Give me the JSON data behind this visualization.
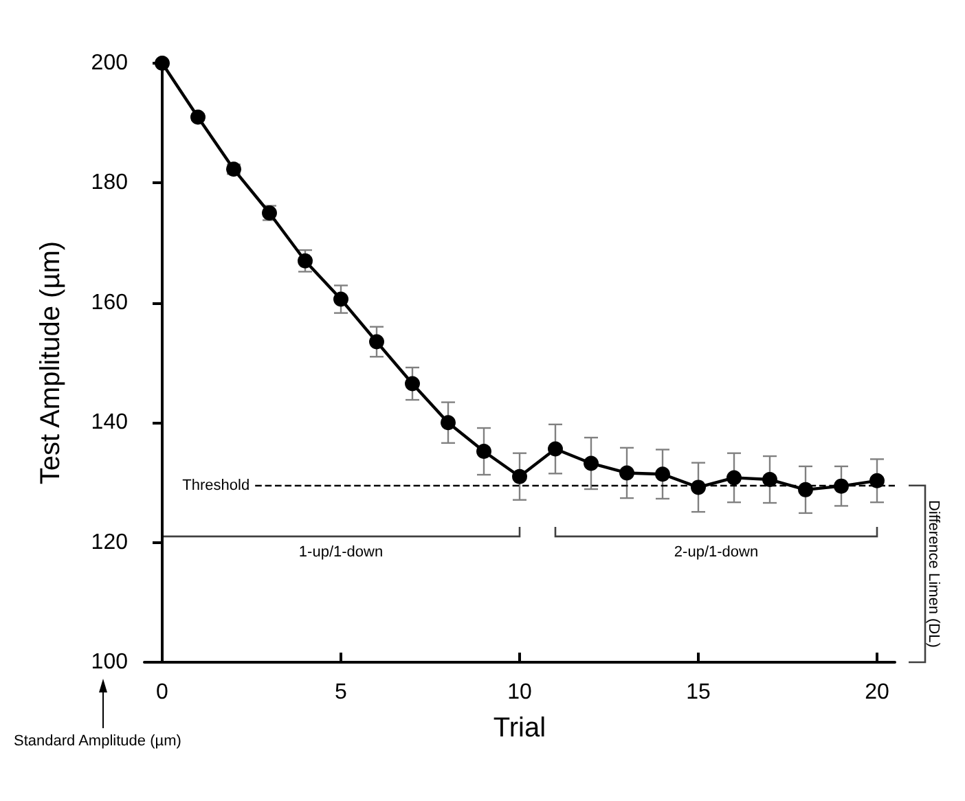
{
  "chart_data": {
    "type": "line",
    "xlabel": "Trial",
    "ylabel": "Test Amplitude (µm)",
    "x": [
      0,
      1,
      2,
      3,
      4,
      5,
      6,
      7,
      8,
      9,
      10,
      11,
      12,
      13,
      14,
      15,
      16,
      17,
      18,
      19,
      20
    ],
    "series": [
      {
        "color": "#000000",
        "values": [
          200,
          191,
          182.3,
          175,
          167,
          160.6,
          153.5,
          146.5,
          140,
          135.2,
          131,
          135.6,
          133.2,
          131.6,
          131.4,
          129.2,
          130.8,
          130.5,
          128.8,
          129.4,
          130.3
        ],
        "errors": [
          null,
          0.5,
          0.8,
          1.2,
          1.8,
          2.3,
          2.5,
          2.7,
          3.4,
          3.9,
          3.9,
          4.1,
          4.3,
          4.2,
          4.1,
          4.1,
          4.1,
          3.9,
          3.9,
          3.3,
          3.6
        ]
      }
    ],
    "xlim": [
      -0.5,
      20.5
    ],
    "xticks": [
      0,
      5,
      10,
      15,
      20
    ],
    "ylim": [
      100,
      200
    ],
    "yticks": [
      100,
      120,
      140,
      160,
      180,
      200
    ],
    "ref_lines": [
      {
        "axis": "y",
        "value": 129.5,
        "label": "Threshold",
        "line_style": "dashed",
        "color": "#000000"
      }
    ],
    "annotations": [
      "1-up/1-down",
      "2-up/1-down",
      "Difference Limen (DL)",
      "Standard Amplitude (µm)"
    ],
    "marker": "circle",
    "line_style": "solid"
  }
}
